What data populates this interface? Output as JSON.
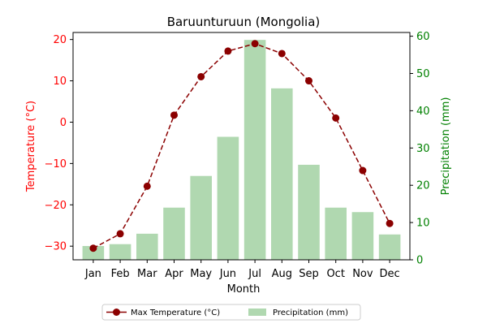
{
  "chart_data": {
    "type": "bar+line",
    "title": "Baruunturuun (Mongolia)",
    "xlabel": "Month",
    "categories": [
      "Jan",
      "Feb",
      "Mar",
      "Apr",
      "May",
      "Jun",
      "Jul",
      "Aug",
      "Sep",
      "Oct",
      "Nov",
      "Dec"
    ],
    "left_axis": {
      "label": "Temperature (°C)",
      "color": "#ff0000",
      "ylim": [
        -33.3,
        21.7
      ],
      "ticks": [
        -30,
        -20,
        -10,
        0,
        10,
        20
      ],
      "tick_labels": [
        "−30",
        "−20",
        "−10",
        "0",
        "10",
        "20"
      ]
    },
    "right_axis": {
      "label": "Precipitation (mm)",
      "color": "#008000",
      "ylim": [
        0,
        61
      ],
      "ticks": [
        0,
        10,
        20,
        30,
        40,
        50,
        60
      ],
      "tick_labels": [
        "0",
        "10",
        "20",
        "30",
        "40",
        "50",
        "60"
      ]
    },
    "series": [
      {
        "name": "Max Temperature (°C)",
        "kind": "line",
        "axis": "left",
        "color": "#8b0000",
        "line_style": "dashed",
        "marker": "circle",
        "values": [
          -30.5,
          -27.0,
          -15.5,
          1.7,
          11.0,
          17.2,
          19.0,
          16.6,
          10.0,
          1.0,
          -11.7,
          -24.5
        ]
      },
      {
        "name": "Precipitation (mm)",
        "kind": "bar",
        "axis": "right",
        "color": "#b0d8b0",
        "values": [
          3.7,
          4.2,
          7.0,
          14.0,
          22.5,
          33.0,
          59.0,
          46.0,
          25.5,
          14.0,
          12.8,
          6.8
        ]
      }
    ],
    "legend": {
      "placement": "bottom-center",
      "ncol": 2,
      "entries": [
        "Max Temperature (°C)",
        "Precipitation (mm)"
      ]
    }
  }
}
